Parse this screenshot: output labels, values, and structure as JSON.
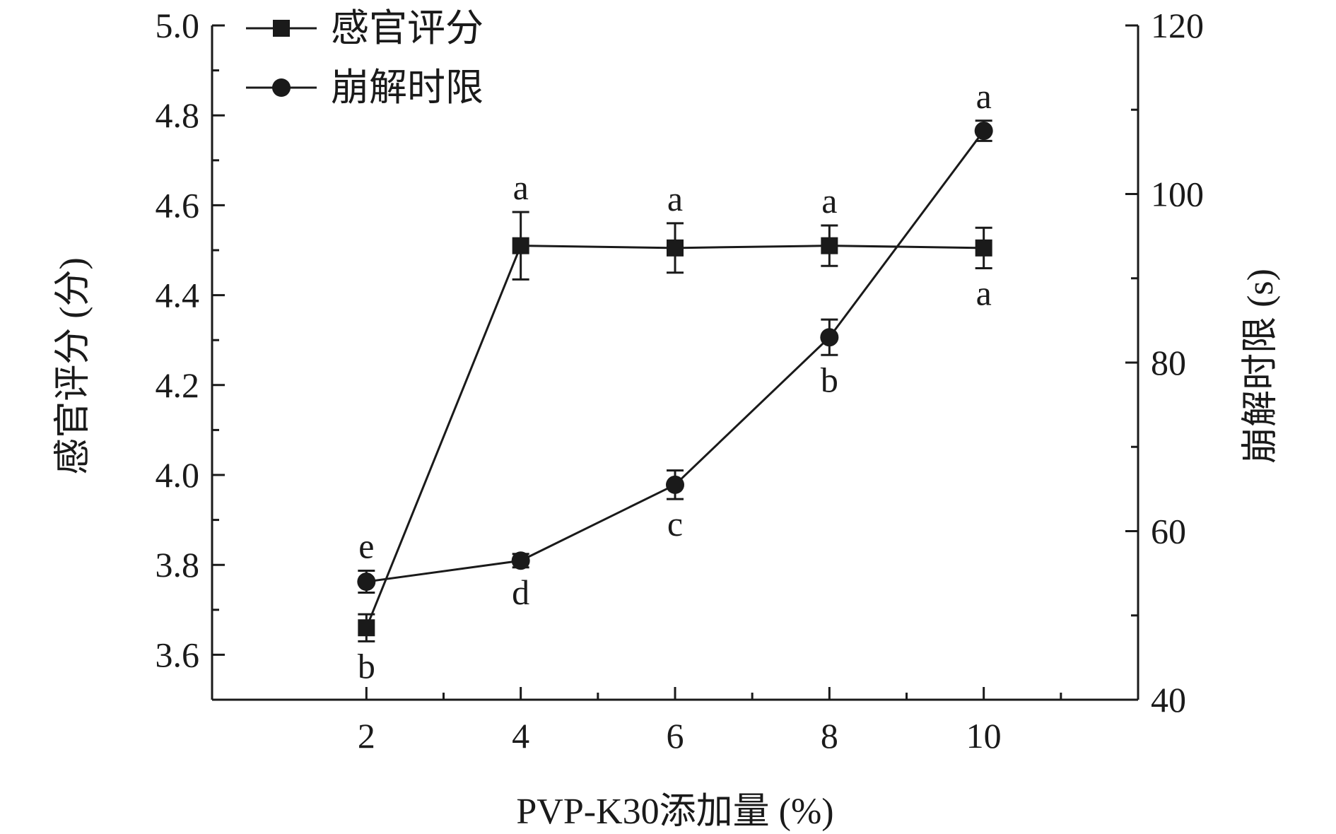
{
  "chart_data": {
    "type": "line",
    "x": [
      2,
      4,
      6,
      8,
      10
    ],
    "xlabel": "PVP-K30添加量 (%)",
    "xlim": [
      0,
      12
    ],
    "xticks": [
      "2",
      "4",
      "6",
      "8",
      "10"
    ],
    "ylabel_left": "感官评分 (分)",
    "ylim_left": [
      3.5,
      5.0
    ],
    "yticks_left": [
      "3.6",
      "3.8",
      "4.0",
      "4.2",
      "4.4",
      "4.6",
      "4.8",
      "5.0"
    ],
    "ylabel_right": "崩解时限 (s)",
    "ylim_right": [
      40,
      120
    ],
    "yticks_right": [
      "40",
      "60",
      "80",
      "100",
      "120"
    ],
    "legend_position": "top-left",
    "series": [
      {
        "name": "感官评分",
        "axis": "left",
        "marker": "square",
        "values": [
          3.66,
          4.51,
          4.505,
          4.51,
          4.505
        ],
        "errors": [
          0.03,
          0.075,
          0.055,
          0.045,
          0.045
        ],
        "labels": [
          "b",
          "a",
          "a",
          "a",
          "a"
        ],
        "label_side": [
          "below",
          "above",
          "above",
          "above",
          "below"
        ]
      },
      {
        "name": "崩解时限",
        "axis": "right",
        "marker": "circle",
        "values": [
          54,
          56.5,
          65.5,
          83,
          107.5
        ],
        "errors": [
          1.3,
          0.8,
          1.7,
          2.1,
          1.2
        ],
        "labels": [
          "e",
          "d",
          "c",
          "b",
          "a"
        ],
        "label_side": [
          "above",
          "below",
          "below",
          "below",
          "above"
        ]
      }
    ],
    "color": "#1a1a1a"
  }
}
